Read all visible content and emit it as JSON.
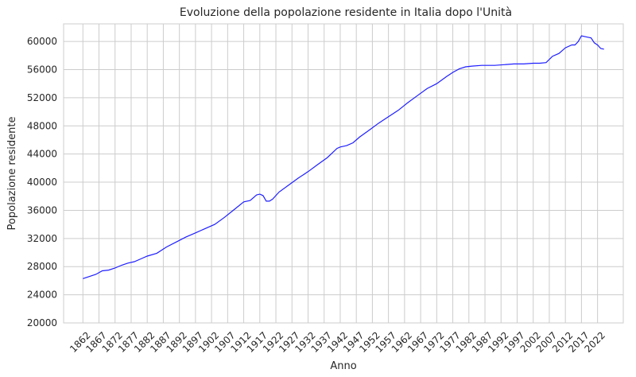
{
  "chart_data": {
    "type": "line",
    "title": "Evoluzione della popolazione residente in Italia dopo l'Unità",
    "xlabel": "Anno",
    "ylabel": "Popolazione residente",
    "xlim": [
      1856,
      2030
    ],
    "ylim": [
      20000,
      62500
    ],
    "x_ticks": [
      1862,
      1867,
      1872,
      1877,
      1882,
      1887,
      1892,
      1897,
      1902,
      1907,
      1912,
      1917,
      1922,
      1927,
      1932,
      1937,
      1942,
      1947,
      1952,
      1957,
      1962,
      1967,
      1972,
      1977,
      1982,
      1987,
      1992,
      1997,
      2002,
      2007,
      2012,
      2017,
      2022
    ],
    "y_ticks": [
      20000,
      24000,
      28000,
      32000,
      36000,
      40000,
      44000,
      48000,
      52000,
      56000,
      60000
    ],
    "grid": true,
    "line_color": "#1f1fff",
    "series": [
      {
        "x": [
          1862,
          1866,
          1868,
          1870,
          1872,
          1874,
          1876,
          1878,
          1880,
          1882,
          1885,
          1888,
          1891,
          1894,
          1897,
          1900,
          1903,
          1906,
          1909,
          1912,
          1914,
          1916,
          1917,
          1918,
          1919,
          1920,
          1921,
          1922,
          1923,
          1926,
          1929,
          1932,
          1935,
          1938,
          1941,
          1942,
          1943,
          1944,
          1946,
          1948,
          1951,
          1954,
          1957,
          1960,
          1963,
          1966,
          1969,
          1972,
          1975,
          1977,
          1979,
          1981,
          1983,
          1986,
          1990,
          1993,
          1996,
          1999,
          2002,
          2004,
          2006,
          2008,
          2010,
          2012,
          2014,
          2015,
          2016,
          2017,
          2018,
          2019,
          2020,
          2021,
          2022,
          2023,
          2024
        ],
        "y": [
          26300,
          26900,
          27400,
          27500,
          27800,
          28200,
          28500,
          28700,
          29100,
          29500,
          29900,
          30800,
          31500,
          32200,
          32800,
          33400,
          34000,
          35000,
          36100,
          37200,
          37400,
          38200,
          38300,
          38100,
          37300,
          37300,
          37600,
          38100,
          38600,
          39600,
          40600,
          41500,
          42500,
          43500,
          44800,
          45000,
          45100,
          45200,
          45600,
          46400,
          47400,
          48400,
          49300,
          50200,
          51300,
          52300,
          53300,
          54000,
          55000,
          55600,
          56100,
          56400,
          56500,
          56600,
          56600,
          56700,
          56800,
          56800,
          56900,
          56900,
          57000,
          57900,
          58300,
          59100,
          59500,
          59500,
          60000,
          60800,
          60700,
          60600,
          60500,
          59800,
          59500,
          59000,
          58900
        ]
      }
    ]
  }
}
